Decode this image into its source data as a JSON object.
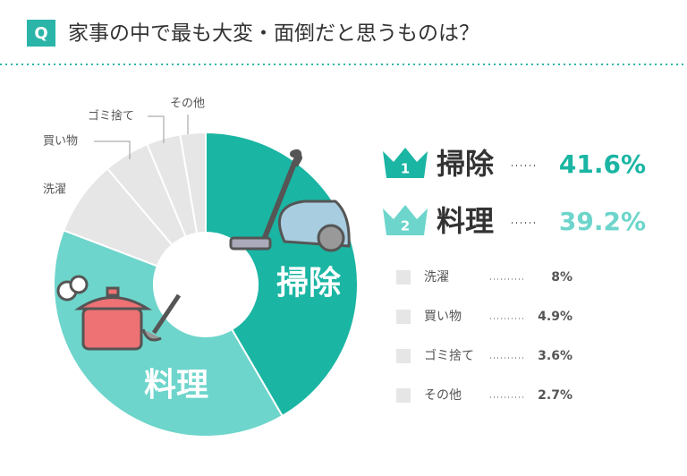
{
  "badge": "Q",
  "chart_data": {
    "type": "donut",
    "title": "家事の中で最も大変・面倒だと思うものは？",
    "categories": [
      "掃除",
      "料理",
      "洗濯",
      "買い物",
      "ゴミ捨て",
      "その他"
    ],
    "values": [
      41.6,
      39.2,
      8,
      4.9,
      3.6,
      2.7
    ],
    "value_labels": [
      "41.6%",
      "39.2%",
      "8%",
      "4.9%",
      "3.6%",
      "2.7%"
    ],
    "colors": [
      "#1ab5a3",
      "#6dd5cb",
      "#e6e6e6",
      "#e6e6e6",
      "#e6e6e6",
      "#e6e6e6"
    ],
    "rank_labels": [
      "1",
      "2"
    ]
  }
}
